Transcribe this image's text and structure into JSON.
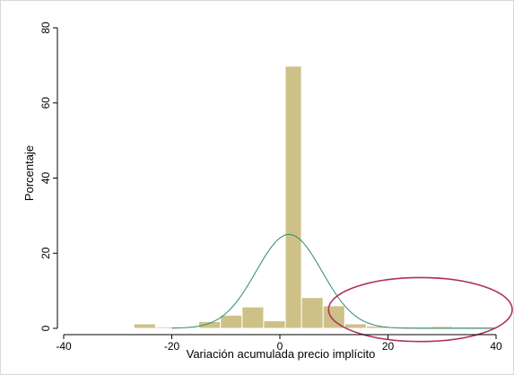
{
  "chart_data": {
    "type": "bar",
    "subtype": "histogram with normal density overlay",
    "xlabel": "Variación acumulada precio implícito",
    "ylabel": "Porcentaje",
    "xlim": [
      -40,
      40
    ],
    "ylim": [
      0,
      80
    ],
    "xticks": [
      -40,
      -20,
      0,
      20,
      40
    ],
    "yticks": [
      0,
      20,
      40,
      60,
      80
    ],
    "xtick_labels": [
      "-40",
      "-20",
      "0",
      "20",
      "40"
    ],
    "ytick_labels": [
      "0",
      "20",
      "40",
      "60",
      "80"
    ],
    "grid": false,
    "legend": "none",
    "bins": [
      {
        "x0": -27,
        "x1": -23,
        "value": 1.2
      },
      {
        "x0": -23,
        "x1": -19,
        "value": 0.4
      },
      {
        "x0": -19,
        "x1": -15,
        "value": 0.3
      },
      {
        "x0": -15,
        "x1": -11,
        "value": 1.8
      },
      {
        "x0": -11,
        "x1": -7,
        "value": 3.5
      },
      {
        "x0": -7,
        "x1": -3,
        "value": 5.7
      },
      {
        "x0": -3,
        "x1": 1,
        "value": 2.0
      },
      {
        "x0": 1,
        "x1": 4,
        "value": 69.8
      },
      {
        "x0": 4,
        "x1": 8,
        "value": 8.2
      },
      {
        "x0": 8,
        "x1": 12,
        "value": 6.0
      },
      {
        "x0": 12,
        "x1": 16,
        "value": 1.2
      },
      {
        "x0": 16,
        "x1": 20,
        "value": 0.6
      },
      {
        "x0": 20,
        "x1": 24,
        "value": 0.4
      },
      {
        "x0": 24,
        "x1": 28,
        "value": 0.4
      },
      {
        "x0": 28,
        "x1": 32,
        "value": 0.5
      },
      {
        "x0": 32,
        "x1": 36,
        "value": 0.4
      },
      {
        "x0": 36,
        "x1": 40,
        "value": 0.4
      }
    ],
    "normal_curve": {
      "mean": 1.7,
      "sd": 6.1,
      "peak": 25.0
    },
    "annotation": {
      "shape": "ellipse",
      "center_x": 26,
      "center_y": 5,
      "half_width_x": 17,
      "half_height_y": 8.5
    },
    "colors": {
      "bar_fill": "#cec188",
      "bar_edge": "#ffffff",
      "curve": "#2e8a74",
      "ellipse": "#b0305c",
      "axis": "#000000"
    }
  }
}
